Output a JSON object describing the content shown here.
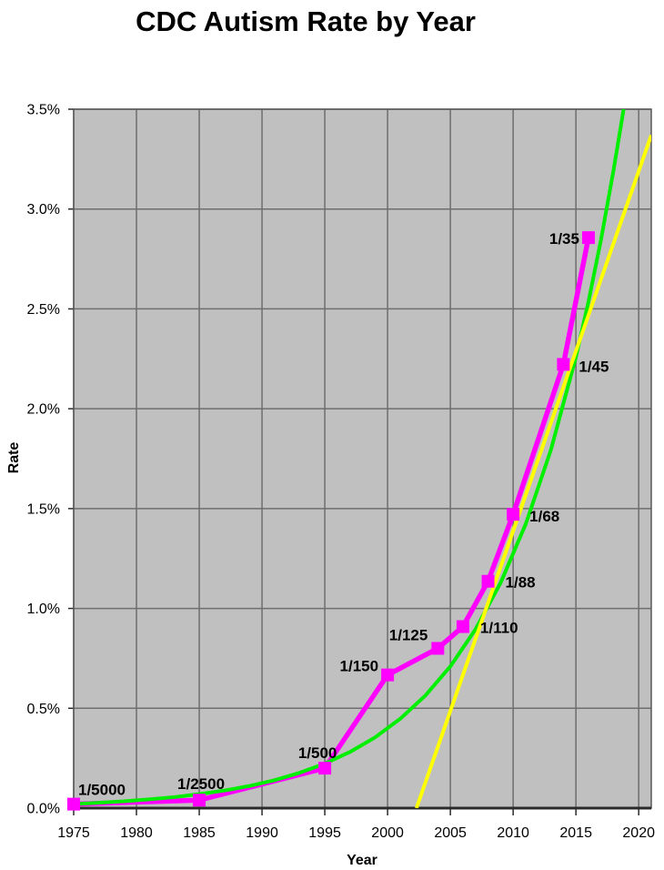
{
  "chart_data": {
    "type": "line",
    "title": "CDC Autism Rate by Year",
    "xlabel": "Year",
    "ylabel": "Rate",
    "xlim": [
      1975,
      2021
    ],
    "ylim": [
      0,
      3.5
    ],
    "grid": true,
    "legend": "none",
    "plot_bg": "#c0c0c0",
    "grid_color": "#6e6e6e",
    "border_color": "#595959",
    "axis_color": "#2b2b2b",
    "text_color": "#000000",
    "x_ticks": [
      1975,
      1980,
      1985,
      1990,
      1995,
      2000,
      2005,
      2010,
      2015,
      2020
    ],
    "x_tick_labels": [
      "1975",
      "1980",
      "1985",
      "1990",
      "1995",
      "2000",
      "2005",
      "2010",
      "2015",
      "2020"
    ],
    "y_ticks": [
      0,
      0.5,
      1.0,
      1.5,
      2.0,
      2.5,
      3.0,
      3.5
    ],
    "y_tick_labels": [
      "0.0%",
      "0.5%",
      "1.0%",
      "1.5%",
      "2.0%",
      "2.5%",
      "3.0%",
      "3.5%"
    ],
    "series": {
      "color": "#ff00ff",
      "marker": "square",
      "points": [
        {
          "year": 1975,
          "rate": 0.02,
          "label": "1/5000"
        },
        {
          "year": 1985,
          "rate": 0.04,
          "label": "1/2500"
        },
        {
          "year": 1995,
          "rate": 0.2,
          "label": "1/500"
        },
        {
          "year": 2000,
          "rate": 0.667,
          "label": "1/150"
        },
        {
          "year": 2004,
          "rate": 0.8,
          "label": "1/125"
        },
        {
          "year": 2006,
          "rate": 0.909,
          "label": "1/110"
        },
        {
          "year": 2008,
          "rate": 1.136,
          "label": "1/88"
        },
        {
          "year": 2010,
          "rate": 1.471,
          "label": "1/68"
        },
        {
          "year": 2014,
          "rate": 2.222,
          "label": "1/45"
        },
        {
          "year": 2016,
          "rate": 2.857,
          "label": "1/35"
        }
      ]
    },
    "trendlines": [
      {
        "fit": "exponential",
        "color": "#00ef00",
        "points": [
          [
            1975,
            0.02
          ],
          [
            1977,
            0.027
          ],
          [
            1979,
            0.034
          ],
          [
            1981,
            0.044
          ],
          [
            1983,
            0.055
          ],
          [
            1985,
            0.07
          ],
          [
            1987,
            0.088
          ],
          [
            1989,
            0.111
          ],
          [
            1991,
            0.14
          ],
          [
            1993,
            0.177
          ],
          [
            1995,
            0.223
          ],
          [
            1997,
            0.281
          ],
          [
            1999,
            0.354
          ],
          [
            2001,
            0.447
          ],
          [
            2003,
            0.563
          ],
          [
            2005,
            0.71
          ],
          [
            2007,
            0.895
          ],
          [
            2009,
            1.128
          ],
          [
            2011,
            1.422
          ],
          [
            2013,
            1.792
          ],
          [
            2015,
            2.259
          ],
          [
            2016,
            2.536
          ],
          [
            2017,
            2.847
          ],
          [
            2018,
            3.196
          ],
          [
            2018.8,
            3.5
          ]
        ]
      },
      {
        "fit": "linear",
        "color": "#ffff00",
        "points": [
          [
            2002.3,
            0
          ],
          [
            2021,
            3.37
          ]
        ]
      }
    ]
  }
}
